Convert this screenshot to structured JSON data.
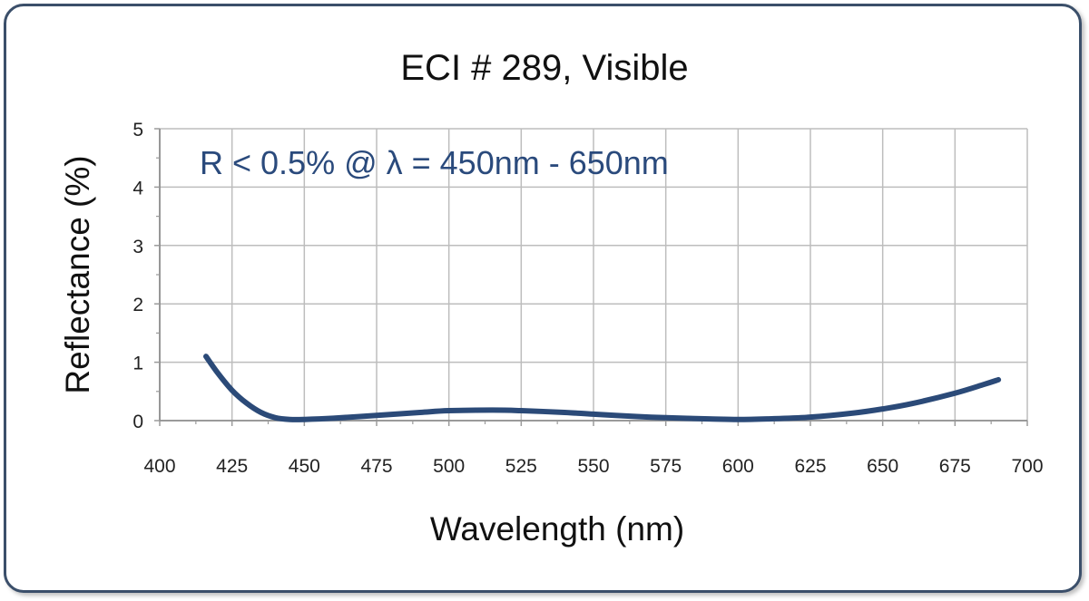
{
  "chart_data": {
    "type": "line",
    "title": "ECI # 289, Visible",
    "xlabel": "Wavelength (nm)",
    "ylabel": "Reflectance (%)",
    "annotation": "R < 0.5% @ λ = 450nm - 650nm",
    "xlim": [
      400,
      700
    ],
    "ylim": [
      0,
      5
    ],
    "x_ticks": [
      "400",
      "425",
      "450",
      "475",
      "500",
      "525",
      "550",
      "575",
      "600",
      "625",
      "650",
      "675",
      "700"
    ],
    "y_ticks": [
      "0",
      "1",
      "2",
      "3",
      "4",
      "5"
    ],
    "grid": true,
    "line_color": "#2b4a78",
    "series": [
      {
        "x": [
          416,
          420,
          425,
          430,
          435,
          440,
          445,
          450,
          460,
          475,
          490,
          500,
          515,
          525,
          540,
          550,
          565,
          575,
          590,
          600,
          610,
          625,
          640,
          650,
          660,
          675,
          685,
          690
        ],
        "y": [
          1.1,
          0.82,
          0.52,
          0.3,
          0.14,
          0.05,
          0.02,
          0.02,
          0.04,
          0.09,
          0.14,
          0.17,
          0.18,
          0.17,
          0.14,
          0.11,
          0.07,
          0.05,
          0.03,
          0.02,
          0.03,
          0.06,
          0.13,
          0.2,
          0.29,
          0.47,
          0.62,
          0.7
        ]
      }
    ]
  }
}
